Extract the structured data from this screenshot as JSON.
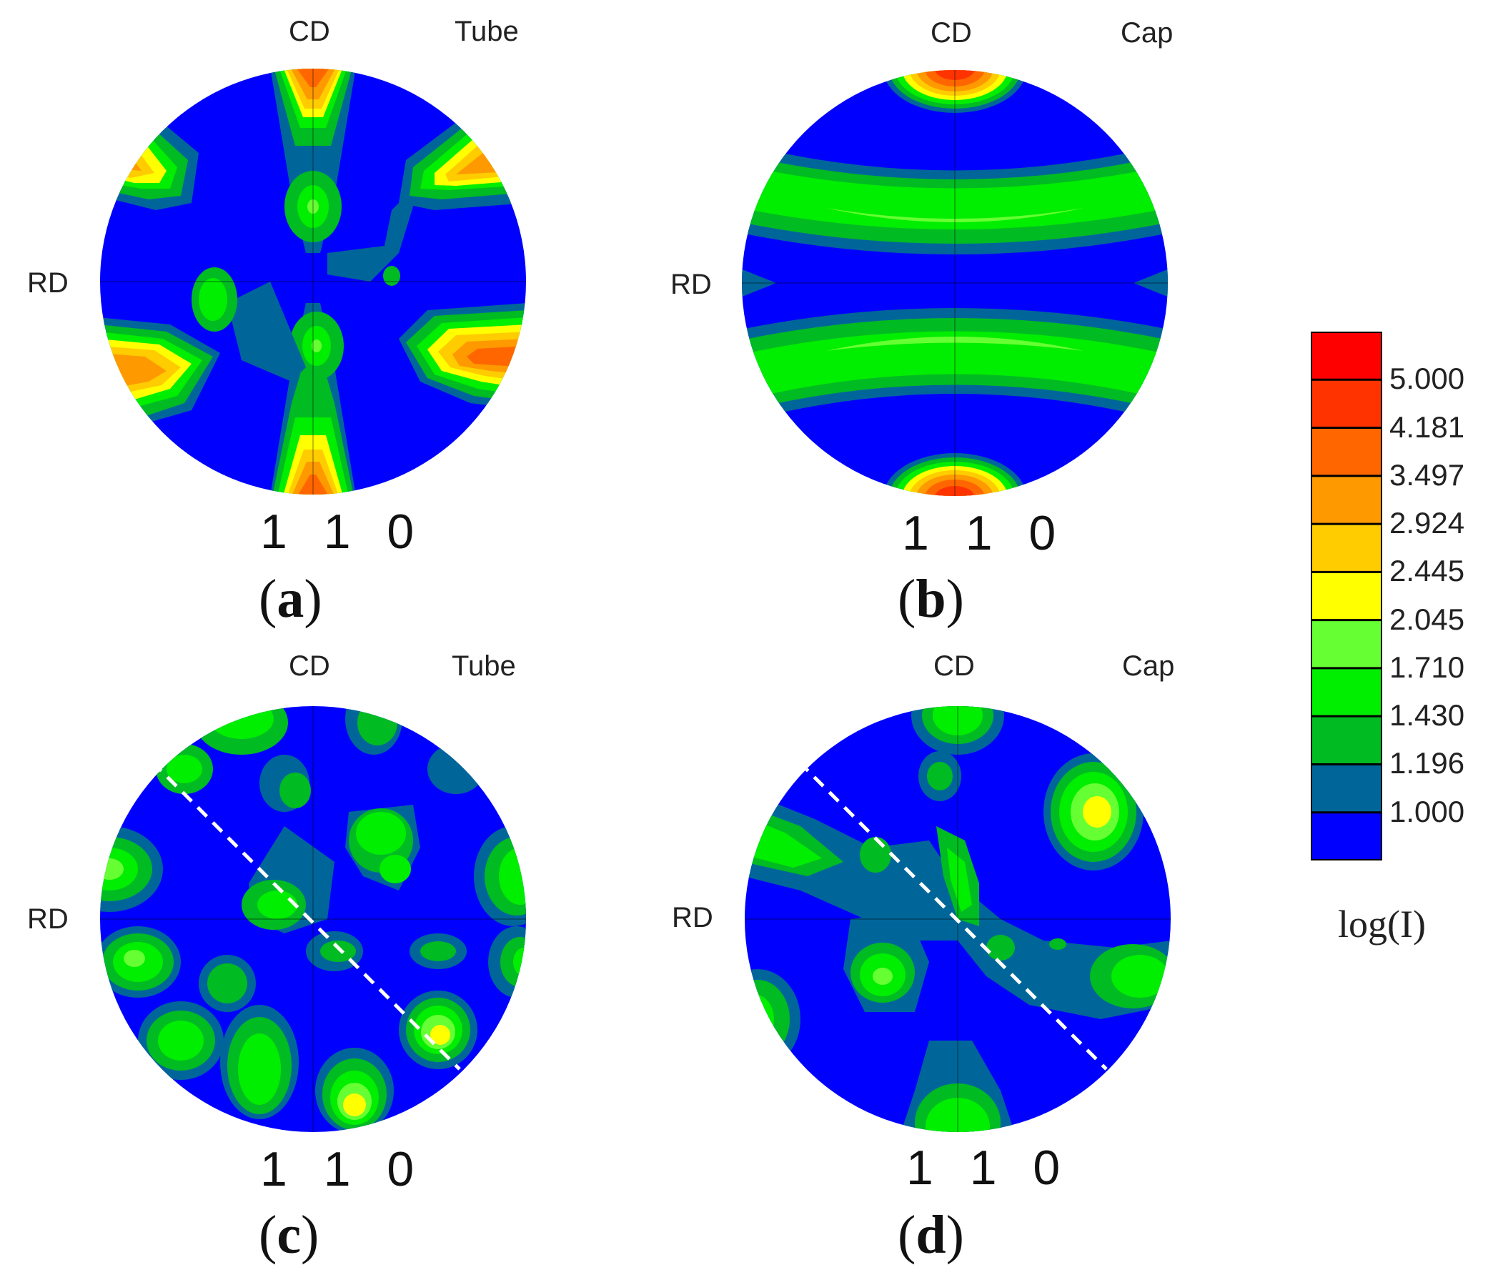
{
  "panels": [
    {
      "id": "a",
      "top_label": "CD",
      "side_label": "RD",
      "corner_label": "Tube",
      "index_label": "1 1 0",
      "caption_letter": "a"
    },
    {
      "id": "b",
      "top_label": "CD",
      "side_label": "RD",
      "corner_label": "Cap",
      "index_label": "1 1 0",
      "caption_letter": "b"
    },
    {
      "id": "c",
      "top_label": "CD",
      "side_label": "RD",
      "corner_label": "Tube",
      "index_label": "1 1 0",
      "caption_letter": "c"
    },
    {
      "id": "d",
      "top_label": "CD",
      "side_label": "RD",
      "corner_label": "Cap",
      "index_label": "1 1 0",
      "caption_letter": "d"
    }
  ],
  "colorbar": {
    "title": "log(I)",
    "ticks": [
      "5.000",
      "4.181",
      "3.497",
      "2.924",
      "2.445",
      "2.045",
      "1.710",
      "1.430",
      "1.196",
      "1.000"
    ],
    "colors": [
      "#ff0000",
      "#ff3300",
      "#ff6600",
      "#ff9900",
      "#ffcc00",
      "#ffff00",
      "#66ff33",
      "#00ee00",
      "#00bb22",
      "#006699",
      "#0000ff"
    ]
  },
  "levels": {
    "l1": "#006699",
    "l2": "#00bb22",
    "l3": "#00ee00",
    "l4": "#66ff33",
    "l5": "#ffff00",
    "l6": "#ffcc00",
    "l7": "#ff9900",
    "l8": "#ff6600",
    "l9": "#ff3300",
    "l10": "#ff0000",
    "base": "#0000ff"
  }
}
